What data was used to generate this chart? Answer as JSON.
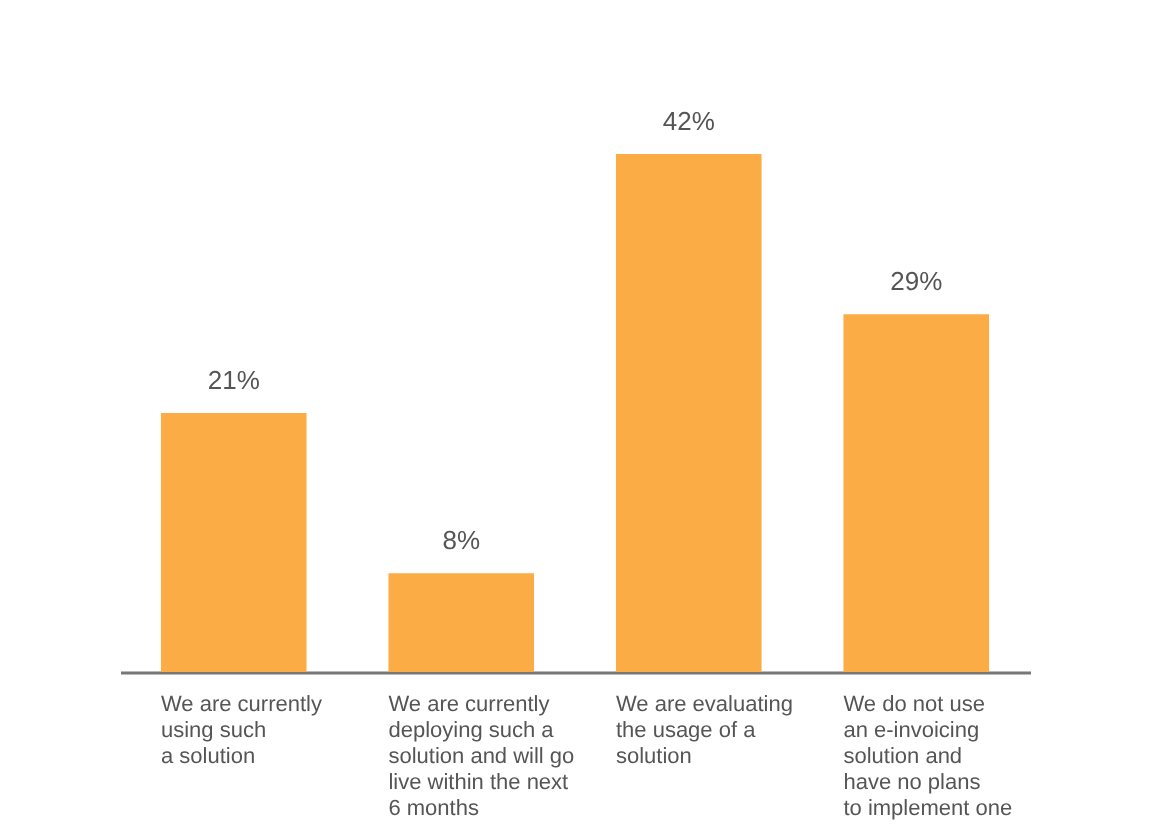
{
  "chart_data": {
    "type": "bar",
    "categories": [
      "We are currently\nusing such\na solution",
      "We are currently\ndeploying such a\nsolution and will go\nlive within the next\n6 months",
      "We are evaluating\nthe usage of a\nsolution",
      "We do not use\nan e-invoicing\nsolution and\nhave no plans\nto implement one"
    ],
    "values": [
      21,
      8,
      42,
      29
    ],
    "value_labels": [
      "21%",
      "8%",
      "42%",
      "29%"
    ],
    "color": "#fbac45",
    "tick_labels": "x",
    "grid": false
  }
}
